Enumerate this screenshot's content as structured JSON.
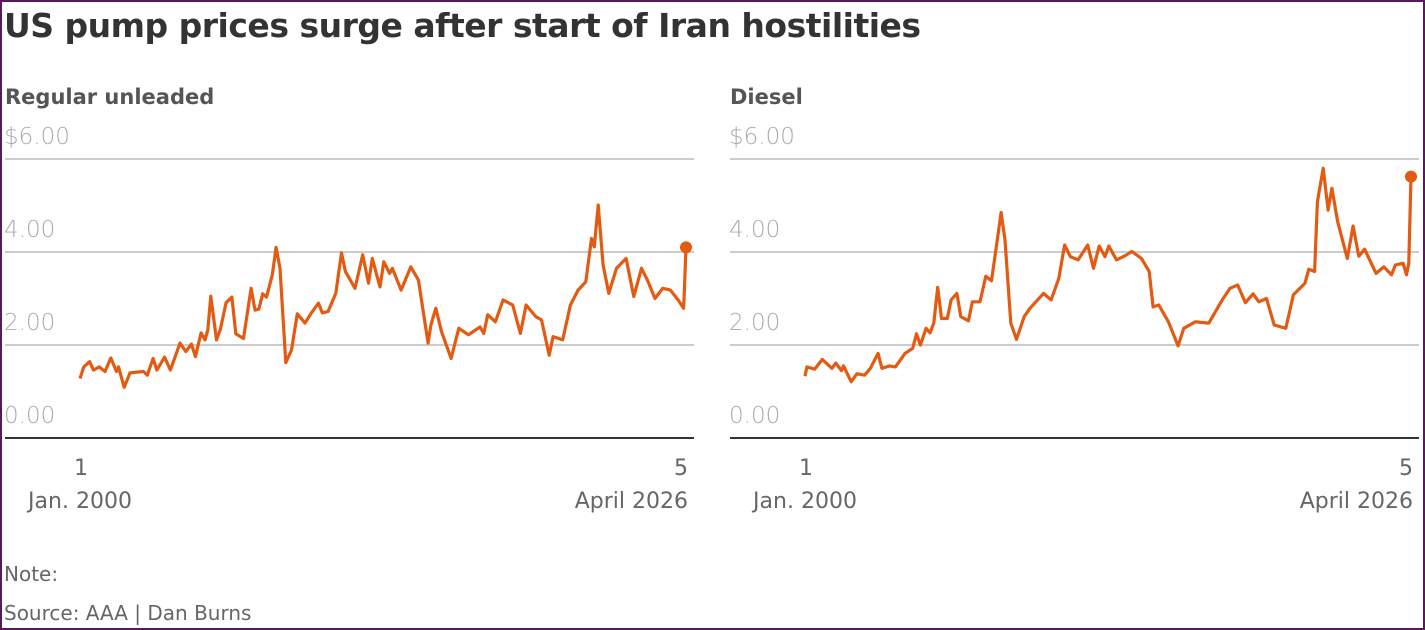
{
  "title": "US pump prices surge after start of Iran hostilities",
  "note": "Note:",
  "source": "Source: AAA | Dan Burns",
  "colors": {
    "line": "#e35a12",
    "grid": "#cccccc",
    "axis": "#333333"
  },
  "chart_data": [
    {
      "type": "line",
      "title": "Regular unleaded",
      "ylim": [
        0,
        6
      ],
      "yticks": [
        "$6.00",
        "4.00",
        "2.00",
        "0.00"
      ],
      "ytick_values": [
        6,
        4,
        2,
        0
      ],
      "xlim": [
        "2000-01-01",
        "2026-04-05"
      ],
      "xticks": [
        {
          "day": "1",
          "label": "Jan. 2000"
        },
        {
          "day": "5",
          "label": "April 2026"
        }
      ],
      "grid": true,
      "end_marker": true,
      "points": [
        [
          "2000-01-01",
          1.28
        ],
        [
          "2000-03-01",
          1.53
        ],
        [
          "2000-06-01",
          1.64
        ],
        [
          "2000-08-01",
          1.46
        ],
        [
          "2000-11-01",
          1.53
        ],
        [
          "2001-02-01",
          1.43
        ],
        [
          "2001-05-01",
          1.72
        ],
        [
          "2001-08-01",
          1.43
        ],
        [
          "2001-09-01",
          1.53
        ],
        [
          "2001-12-01",
          1.09
        ],
        [
          "2002-03-01",
          1.4
        ],
        [
          "2002-10-01",
          1.43
        ],
        [
          "2002-12-01",
          1.35
        ],
        [
          "2003-03-01",
          1.71
        ],
        [
          "2003-05-01",
          1.46
        ],
        [
          "2003-09-01",
          1.74
        ],
        [
          "2003-12-01",
          1.46
        ],
        [
          "2004-05-01",
          2.04
        ],
        [
          "2004-08-01",
          1.86
        ],
        [
          "2004-11-01",
          2.02
        ],
        [
          "2005-01-01",
          1.75
        ],
        [
          "2005-04-01",
          2.26
        ],
        [
          "2005-06-01",
          2.11
        ],
        [
          "2005-07-15",
          2.32
        ],
        [
          "2005-09-01",
          3.05
        ],
        [
          "2005-12-01",
          2.11
        ],
        [
          "2006-02-01",
          2.34
        ],
        [
          "2006-05-01",
          2.91
        ],
        [
          "2006-08-01",
          3.03
        ],
        [
          "2006-10-01",
          2.24
        ],
        [
          "2007-02-01",
          2.14
        ],
        [
          "2007-06-01",
          3.22
        ],
        [
          "2007-08-01",
          2.75
        ],
        [
          "2007-10-01",
          2.77
        ],
        [
          "2007-12-01",
          3.1
        ],
        [
          "2008-02-01",
          3.03
        ],
        [
          "2008-05-01",
          3.51
        ],
        [
          "2008-07-01",
          4.1
        ],
        [
          "2008-09-01",
          3.65
        ],
        [
          "2008-12-01",
          1.62
        ],
        [
          "2009-03-01",
          1.89
        ],
        [
          "2009-06-01",
          2.67
        ],
        [
          "2009-10-01",
          2.47
        ],
        [
          "2010-01-01",
          2.67
        ],
        [
          "2010-05-01",
          2.9
        ],
        [
          "2010-07-01",
          2.69
        ],
        [
          "2010-10-01",
          2.72
        ],
        [
          "2011-02-01",
          3.11
        ],
        [
          "2011-05-01",
          3.98
        ],
        [
          "2011-07-01",
          3.58
        ],
        [
          "2011-12-01",
          3.22
        ],
        [
          "2012-04-01",
          3.94
        ],
        [
          "2012-07-01",
          3.33
        ],
        [
          "2012-09-01",
          3.86
        ],
        [
          "2013-01-01",
          3.25
        ],
        [
          "2013-03-01",
          3.79
        ],
        [
          "2013-06-01",
          3.54
        ],
        [
          "2013-07-15",
          3.65
        ],
        [
          "2013-12-01",
          3.18
        ],
        [
          "2014-05-01",
          3.68
        ],
        [
          "2014-09-01",
          3.4
        ],
        [
          "2015-02-01",
          2.04
        ],
        [
          "2015-03-15",
          2.43
        ],
        [
          "2015-06-01",
          2.79
        ],
        [
          "2015-09-01",
          2.29
        ],
        [
          "2016-02-01",
          1.71
        ],
        [
          "2016-06-01",
          2.36
        ],
        [
          "2016-11-01",
          2.22
        ],
        [
          "2017-05-01",
          2.39
        ],
        [
          "2017-07-01",
          2.25
        ],
        [
          "2017-09-01",
          2.65
        ],
        [
          "2018-01-01",
          2.5
        ],
        [
          "2018-05-01",
          2.97
        ],
        [
          "2018-10-01",
          2.86
        ],
        [
          "2019-02-01",
          2.25
        ],
        [
          "2019-05-01",
          2.86
        ],
        [
          "2019-10-01",
          2.61
        ],
        [
          "2020-01-01",
          2.54
        ],
        [
          "2020-05-01",
          1.78
        ],
        [
          "2020-07-01",
          2.18
        ],
        [
          "2020-12-01",
          2.11
        ],
        [
          "2021-04-01",
          2.86
        ],
        [
          "2021-08-01",
          3.18
        ],
        [
          "2021-12-01",
          3.36
        ],
        [
          "2022-03-01",
          4.29
        ],
        [
          "2022-04-15",
          4.11
        ],
        [
          "2022-06-15",
          5.01
        ],
        [
          "2022-09-01",
          3.72
        ],
        [
          "2022-12-01",
          3.11
        ],
        [
          "2023-04-01",
          3.65
        ],
        [
          "2023-09-01",
          3.86
        ],
        [
          "2024-01-01",
          3.04
        ],
        [
          "2024-05-01",
          3.65
        ],
        [
          "2024-08-01",
          3.4
        ],
        [
          "2024-12-01",
          3.0
        ],
        [
          "2025-04-01",
          3.22
        ],
        [
          "2025-08-01",
          3.18
        ],
        [
          "2025-12-01",
          2.97
        ],
        [
          "2026-02-28",
          2.79
        ],
        [
          "2026-03-04",
          2.97
        ],
        [
          "2026-04-05",
          4.1
        ]
      ]
    },
    {
      "type": "line",
      "title": "Diesel",
      "ylim": [
        0,
        6
      ],
      "yticks": [
        "$6.00",
        "4.00",
        "2.00",
        "0.00"
      ],
      "ytick_values": [
        6,
        4,
        2,
        0
      ],
      "xlim": [
        "2000-01-01",
        "2026-04-05"
      ],
      "xticks": [
        {
          "day": "1",
          "label": "Jan. 2000"
        },
        {
          "day": "5",
          "label": "April 2026"
        }
      ],
      "grid": true,
      "end_marker": true,
      "points": [
        [
          "2000-01-01",
          1.33
        ],
        [
          "2000-02-01",
          1.53
        ],
        [
          "2000-06-01",
          1.48
        ],
        [
          "2000-10-01",
          1.69
        ],
        [
          "2001-03-01",
          1.5
        ],
        [
          "2001-05-01",
          1.61
        ],
        [
          "2001-08-01",
          1.45
        ],
        [
          "2001-09-01",
          1.55
        ],
        [
          "2002-01-01",
          1.21
        ],
        [
          "2002-04-01",
          1.38
        ],
        [
          "2002-08-01",
          1.35
        ],
        [
          "2002-11-01",
          1.5
        ],
        [
          "2003-03-01",
          1.82
        ],
        [
          "2003-05-01",
          1.5
        ],
        [
          "2003-09-01",
          1.55
        ],
        [
          "2003-12-01",
          1.53
        ],
        [
          "2004-05-01",
          1.82
        ],
        [
          "2004-09-01",
          1.93
        ],
        [
          "2004-11-01",
          2.24
        ],
        [
          "2005-01-01",
          2.0
        ],
        [
          "2005-04-01",
          2.36
        ],
        [
          "2005-06-01",
          2.26
        ],
        [
          "2005-08-01",
          2.47
        ],
        [
          "2005-10-01",
          3.24
        ],
        [
          "2005-12-01",
          2.57
        ],
        [
          "2006-03-01",
          2.57
        ],
        [
          "2006-05-01",
          2.97
        ],
        [
          "2006-08-01",
          3.11
        ],
        [
          "2006-10-01",
          2.61
        ],
        [
          "2007-02-01",
          2.52
        ],
        [
          "2007-04-01",
          2.93
        ],
        [
          "2007-08-01",
          2.93
        ],
        [
          "2007-11-01",
          3.48
        ],
        [
          "2008-02-01",
          3.38
        ],
        [
          "2008-05-01",
          4.26
        ],
        [
          "2008-07-01",
          4.85
        ],
        [
          "2008-09-01",
          4.26
        ],
        [
          "2008-12-01",
          2.47
        ],
        [
          "2009-03-01",
          2.12
        ],
        [
          "2009-07-01",
          2.61
        ],
        [
          "2009-10-01",
          2.79
        ],
        [
          "2010-05-01",
          3.11
        ],
        [
          "2010-09-01",
          2.97
        ],
        [
          "2011-01-01",
          3.43
        ],
        [
          "2011-04-01",
          4.15
        ],
        [
          "2011-07-01",
          3.9
        ],
        [
          "2011-11-01",
          3.83
        ],
        [
          "2012-04-01",
          4.15
        ],
        [
          "2012-07-01",
          3.65
        ],
        [
          "2012-10-01",
          4.13
        ],
        [
          "2013-01-01",
          3.9
        ],
        [
          "2013-03-01",
          4.13
        ],
        [
          "2013-07-01",
          3.83
        ],
        [
          "2013-11-01",
          3.91
        ],
        [
          "2014-03-01",
          4.01
        ],
        [
          "2014-08-01",
          3.86
        ],
        [
          "2014-12-01",
          3.58
        ],
        [
          "2015-02-01",
          2.82
        ],
        [
          "2015-05-01",
          2.86
        ],
        [
          "2015-10-01",
          2.5
        ],
        [
          "2016-03-01",
          1.98
        ],
        [
          "2016-06-01",
          2.36
        ],
        [
          "2016-12-01",
          2.5
        ],
        [
          "2017-07-01",
          2.47
        ],
        [
          "2018-02-01",
          2.97
        ],
        [
          "2018-06-01",
          3.22
        ],
        [
          "2018-10-01",
          3.29
        ],
        [
          "2019-02-01",
          2.91
        ],
        [
          "2019-06-01",
          3.1
        ],
        [
          "2019-09-01",
          2.93
        ],
        [
          "2020-01-01",
          3.0
        ],
        [
          "2020-05-01",
          2.43
        ],
        [
          "2020-11-01",
          2.36
        ],
        [
          "2021-03-01",
          3.08
        ],
        [
          "2021-09-01",
          3.33
        ],
        [
          "2021-11-01",
          3.63
        ],
        [
          "2022-02-01",
          3.58
        ],
        [
          "2022-03-15",
          5.08
        ],
        [
          "2022-06-15",
          5.8
        ],
        [
          "2022-09-01",
          4.9
        ],
        [
          "2022-11-01",
          5.37
        ],
        [
          "2023-02-01",
          4.65
        ],
        [
          "2023-07-01",
          3.86
        ],
        [
          "2023-10-01",
          4.56
        ],
        [
          "2024-01-01",
          3.91
        ],
        [
          "2024-04-01",
          4.06
        ],
        [
          "2024-10-01",
          3.54
        ],
        [
          "2025-02-01",
          3.68
        ],
        [
          "2025-06-01",
          3.51
        ],
        [
          "2025-08-01",
          3.72
        ],
        [
          "2025-12-01",
          3.76
        ],
        [
          "2026-01-25",
          3.51
        ],
        [
          "2026-03-01",
          3.76
        ],
        [
          "2026-04-05",
          5.62
        ]
      ]
    }
  ]
}
